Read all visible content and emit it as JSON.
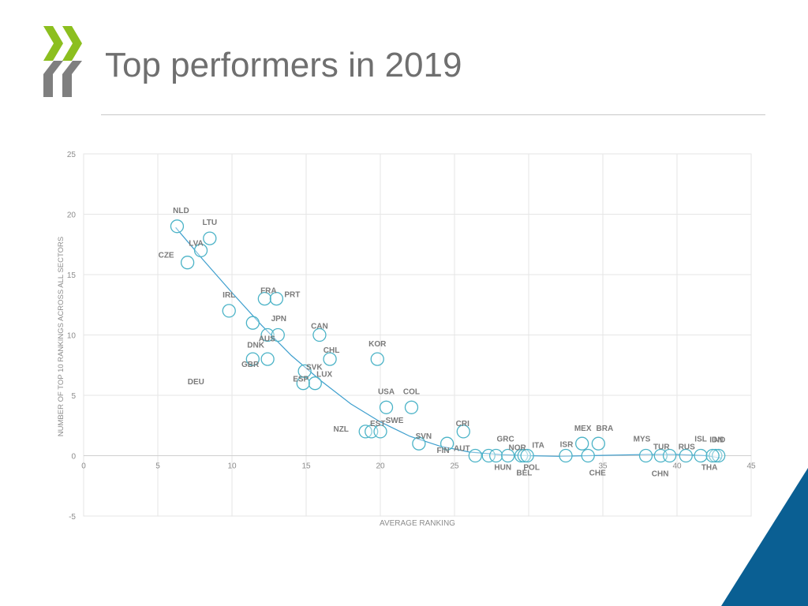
{
  "slide": {
    "title": "Top performers in 2019",
    "colors": {
      "title": "#6f6f6f",
      "logo_green": "#8cbf1f",
      "logo_grey": "#7f7f7f",
      "corner_blue": "#0a5f93",
      "marker": "#4bb3c7",
      "trendline": "#3e9fce"
    },
    "logo_icon": "oecd-chevron-logo-icon",
    "corner_icon": "blue-triangle-corner-icon"
  },
  "chart_data": {
    "type": "scatter",
    "xlabel": "AVERAGE RANKING",
    "ylabel": "NUMBER OF TOP 10 RANKINGS ACROSS ALL SECTORS",
    "xlim": [
      0,
      45
    ],
    "ylim": [
      -5,
      25
    ],
    "xticks": [
      0,
      5,
      10,
      15,
      20,
      25,
      30,
      35,
      40,
      45
    ],
    "yticks": [
      -5,
      0,
      5,
      10,
      15,
      20,
      25
    ],
    "x_tick_labels": [
      "0",
      "5",
      "10",
      "15",
      "20",
      "25",
      "",
      "35",
      "40",
      "45"
    ],
    "grid": true,
    "trendline": "polynomial",
    "trendline_points": [
      [
        6.2,
        18.9
      ],
      [
        8,
        16.3
      ],
      [
        10,
        13.5
      ],
      [
        12,
        10.8
      ],
      [
        14,
        8.3
      ],
      [
        16,
        6.2
      ],
      [
        18,
        4.3
      ],
      [
        20,
        2.8
      ],
      [
        22,
        1.6
      ],
      [
        24,
        0.8
      ],
      [
        26,
        0.3
      ],
      [
        28,
        0.1
      ],
      [
        30,
        0.0
      ],
      [
        32,
        -0.05
      ],
      [
        34,
        0.0
      ],
      [
        36,
        0.05
      ],
      [
        38,
        0.1
      ],
      [
        40,
        0.1
      ],
      [
        42,
        0.0
      ],
      [
        43,
        -0.2
      ]
    ],
    "points": [
      {
        "label": "NLD",
        "x": 6.3,
        "y": 19
      },
      {
        "label": "LTU",
        "x": 8.5,
        "y": 18
      },
      {
        "label": "LVA",
        "x": 7.9,
        "y": 17
      },
      {
        "label": "CZE",
        "x": 7.0,
        "y": 16
      },
      {
        "label": "IRL",
        "x": 9.8,
        "y": 12
      },
      {
        "label": "FRA",
        "x": 12.2,
        "y": 13
      },
      {
        "label": "PRT",
        "x": 13.0,
        "y": 13
      },
      {
        "label": "JPN",
        "x": 11.4,
        "y": 11
      },
      {
        "label": "DNK",
        "x": 12.4,
        "y": 10
      },
      {
        "label": "AUS",
        "x": 13.1,
        "y": 10
      },
      {
        "label": "DEU",
        "x": 11.4,
        "y": 8
      },
      {
        "label": "CAN",
        "x": 15.9,
        "y": 10
      },
      {
        "label": "CHL",
        "x": 16.6,
        "y": 8
      },
      {
        "label": "KOR",
        "x": 19.8,
        "y": 8
      },
      {
        "label": "GBR",
        "x": 12.4,
        "y": 8
      },
      {
        "label": "LUX",
        "x": 14.9,
        "y": 7
      },
      {
        "label": "SVK",
        "x": 15.6,
        "y": 6
      },
      {
        "label": "ESP",
        "x": 14.8,
        "y": 6
      },
      {
        "label": "USA",
        "x": 20.4,
        "y": 4
      },
      {
        "label": "COL",
        "x": 22.1,
        "y": 4
      },
      {
        "label": "NZL",
        "x": 19.0,
        "y": 2
      },
      {
        "label": "EST",
        "x": 19.4,
        "y": 2
      },
      {
        "label": "SWE",
        "x": 20.0,
        "y": 2
      },
      {
        "label": "CRI",
        "x": 25.6,
        "y": 2
      },
      {
        "label": "SVN",
        "x": 22.6,
        "y": 1
      },
      {
        "label": "FIN",
        "x": 24.5,
        "y": 1
      },
      {
        "label": "AUT",
        "x": 26.4,
        "y": 0
      },
      {
        "label": "HUN",
        "x": 27.3,
        "y": 0
      },
      {
        "label": "GRC",
        "x": 27.8,
        "y": 0
      },
      {
        "label": "POL",
        "x": 28.6,
        "y": 0
      },
      {
        "label": "NOR",
        "x": 29.5,
        "y": 0
      },
      {
        "label": "BEL",
        "x": 29.7,
        "y": 0
      },
      {
        "label": "ITA",
        "x": 29.9,
        "y": 0
      },
      {
        "label": "ISR",
        "x": 32.5,
        "y": 0
      },
      {
        "label": "MEX",
        "x": 33.6,
        "y": 1
      },
      {
        "label": "BRA",
        "x": 34.7,
        "y": 1
      },
      {
        "label": "CHE",
        "x": 34.0,
        "y": 0
      },
      {
        "label": "MYS",
        "x": 37.9,
        "y": 0
      },
      {
        "label": "TUR",
        "x": 38.9,
        "y": 0
      },
      {
        "label": "CHN",
        "x": 39.5,
        "y": 0
      },
      {
        "label": "RUS",
        "x": 40.6,
        "y": 0
      },
      {
        "label": "ISL",
        "x": 41.6,
        "y": 0
      },
      {
        "label": "IDN",
        "x": 42.6,
        "y": 0
      },
      {
        "label": "IND",
        "x": 42.8,
        "y": 0
      },
      {
        "label": "THA",
        "x": 42.4,
        "y": 0
      }
    ]
  }
}
